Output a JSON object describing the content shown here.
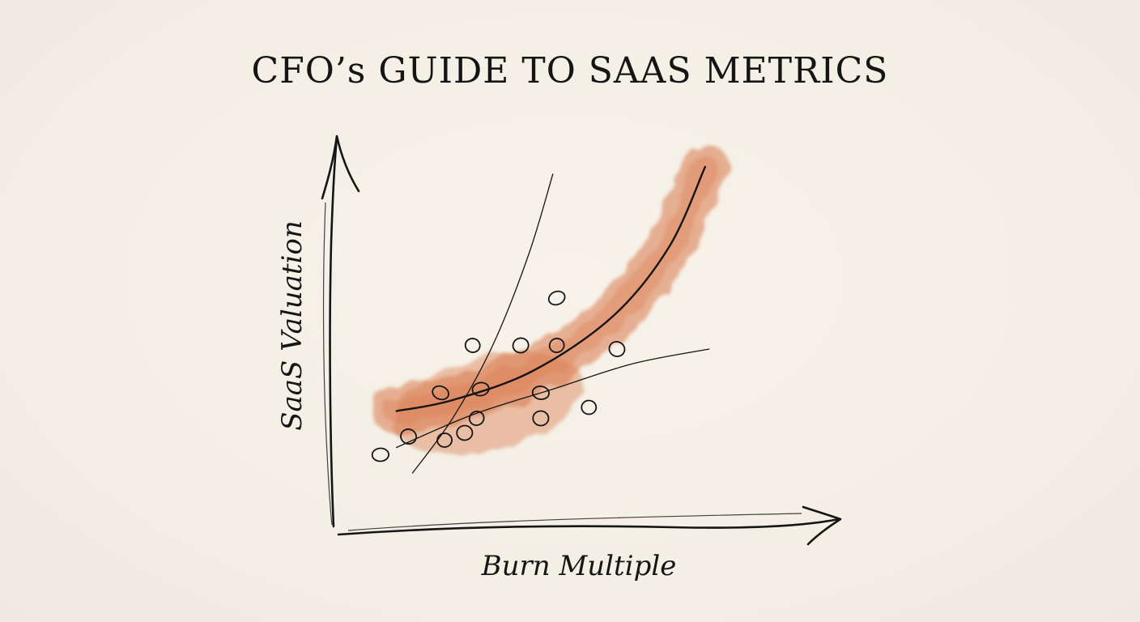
{
  "title": "CFO’s GUIDE TO SAAS METRICS",
  "chart_data": {
    "type": "scatter",
    "title": "CFO’s GUIDE TO SAAS METRICS",
    "xlabel": "Burn Multiple",
    "ylabel": "SaaS Valuation",
    "xlim": [
      0,
      10
    ],
    "ylim": [
      0,
      10
    ],
    "grid": false,
    "legend": "none",
    "colors": {
      "ink": "#151515",
      "band": "#d9774a",
      "background": "#f4f0e6"
    },
    "points": [
      {
        "x": 2.6,
        "y": 2.3
      },
      {
        "x": 2.3,
        "y": 1.9
      },
      {
        "x": 1.7,
        "y": 3.0
      },
      {
        "x": 1.8,
        "y": 1.7
      },
      {
        "x": 0.9,
        "y": 1.8
      },
      {
        "x": 2.7,
        "y": 3.1
      },
      {
        "x": 2.5,
        "y": 4.3
      },
      {
        "x": 3.7,
        "y": 4.3
      },
      {
        "x": 4.2,
        "y": 3.0
      },
      {
        "x": 4.6,
        "y": 4.3
      },
      {
        "x": 4.2,
        "y": 2.3
      },
      {
        "x": 4.6,
        "y": 5.6
      },
      {
        "x": 5.4,
        "y": 2.6
      },
      {
        "x": 6.1,
        "y": 4.2
      },
      {
        "x": 0.2,
        "y": 1.3
      }
    ],
    "trend_main": [
      [
        0.6,
        2.5
      ],
      [
        2.0,
        2.8
      ],
      [
        4.0,
        3.6
      ],
      [
        6.0,
        5.1
      ],
      [
        7.4,
        7.0
      ],
      [
        8.3,
        9.2
      ]
    ],
    "trend_steep": [
      [
        1.0,
        0.8
      ],
      [
        2.0,
        2.3
      ],
      [
        3.0,
        4.3
      ],
      [
        3.9,
        6.8
      ],
      [
        4.5,
        9.0
      ]
    ],
    "trend_flat": [
      [
        0.6,
        1.5
      ],
      [
        2.5,
        2.4
      ],
      [
        4.5,
        3.1
      ],
      [
        6.5,
        3.8
      ],
      [
        8.4,
        4.2
      ]
    ]
  }
}
